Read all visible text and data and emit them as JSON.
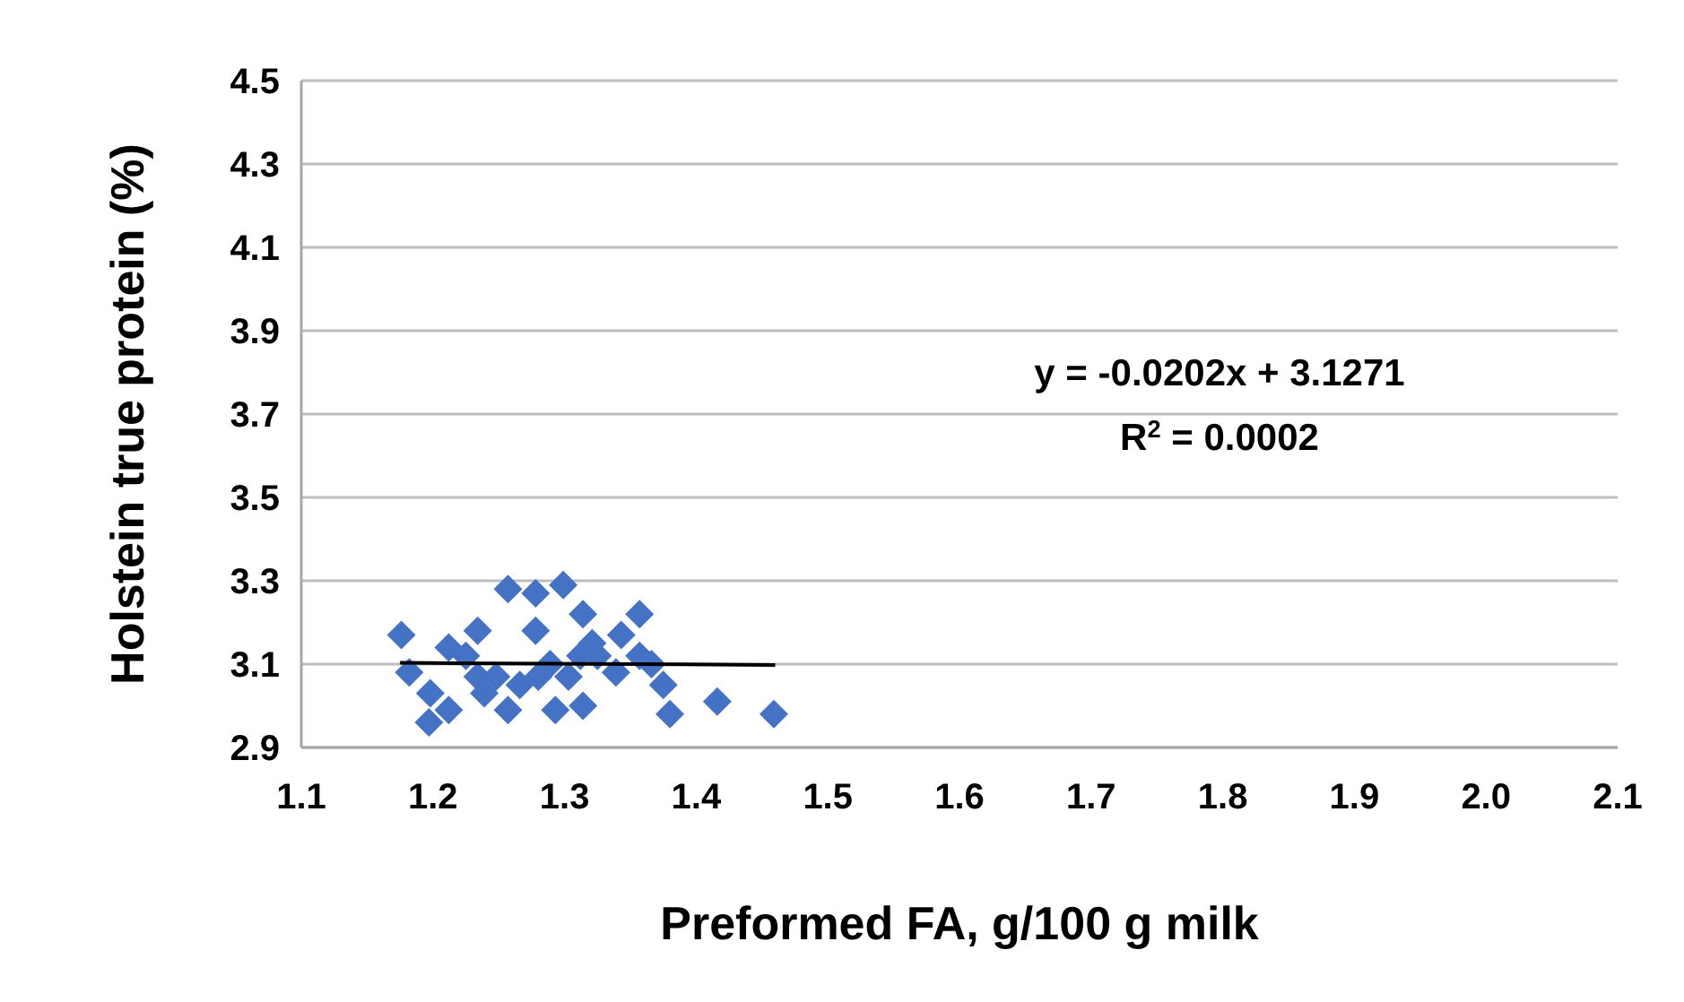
{
  "chart_data": {
    "type": "scatter",
    "xlabel": "Preformed FA, g/100 g milk",
    "ylabel": "Holstein true protein (%)",
    "xlim": [
      1.1,
      2.1
    ],
    "xticks": [
      1.1,
      1.2,
      1.3,
      1.4,
      1.5,
      1.6,
      1.7,
      1.8,
      1.9,
      {
        "value": 2.0,
        "label": "2.0"
      },
      2.1
    ],
    "ylim": [
      2.9,
      4.5
    ],
    "yticks": [
      2.9,
      3.1,
      3.3,
      3.5,
      3.7,
      3.9,
      4.1,
      4.3,
      4.5
    ],
    "grid": "y",
    "series": [
      {
        "type": "scatter",
        "color": "#4472c4",
        "marker": "diamond",
        "x": [
          1.257,
          1.278,
          1.299,
          1.176,
          1.234,
          1.278,
          1.212,
          1.314,
          1.357,
          1.343,
          1.321,
          1.325,
          1.182,
          1.225,
          1.234,
          1.198,
          1.212,
          1.197,
          1.239,
          1.257,
          1.266,
          1.28,
          1.293,
          1.314,
          1.303,
          1.339,
          1.366,
          1.375,
          1.38,
          1.416,
          1.459,
          1.312,
          1.289,
          1.357,
          1.248
        ],
        "values": [
          3.28,
          3.27,
          3.29,
          3.17,
          3.18,
          3.18,
          3.14,
          3.22,
          3.22,
          3.17,
          3.15,
          3.12,
          3.08,
          3.12,
          3.07,
          3.03,
          2.99,
          2.96,
          3.03,
          2.99,
          3.05,
          3.07,
          2.99,
          3.0,
          3.07,
          3.08,
          3.1,
          3.05,
          2.98,
          3.01,
          2.98,
          3.12,
          3.1,
          3.12,
          3.07
        ]
      },
      {
        "type": "line",
        "color": "#000000",
        "marker": "none",
        "x": [
          1.175,
          1.46
        ],
        "values": [
          3.103,
          3.098
        ]
      }
    ],
    "annotations": [
      "y = -0.0202x + 3.1271",
      "R$^{2}$ = 0.0002"
    ]
  }
}
